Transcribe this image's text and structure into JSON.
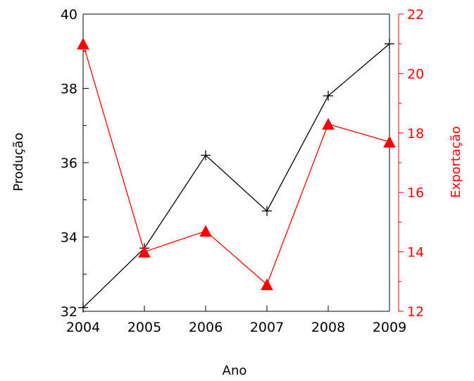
{
  "chart_data": {
    "type": "line",
    "title": "",
    "xlabel": "Ano",
    "ylabel_left": "Produção",
    "ylabel_right": "Exportação",
    "x": [
      2004,
      2005,
      2006,
      2007,
      2008,
      2009
    ],
    "xlim": [
      2004,
      2009
    ],
    "x_tick_labels": [
      "2004",
      "2005",
      "2006",
      "2007",
      "2008",
      "2009"
    ],
    "ylim_left": [
      32,
      40
    ],
    "y_left_tick_labels": [
      "32",
      "34",
      "36",
      "38",
      "40"
    ],
    "ylim_right": [
      12,
      22
    ],
    "y_right_tick_labels": [
      "12",
      "14",
      "16",
      "18",
      "20",
      "22"
    ],
    "grid": false,
    "series": [
      {
        "axis": "left",
        "color": "#000000",
        "marker": "plus",
        "values": [
          32.1,
          33.7,
          36.2,
          34.7,
          37.8,
          39.2
        ]
      },
      {
        "axis": "right",
        "color": "#ff0000",
        "marker": "triangle",
        "values": [
          21.0,
          14.0,
          14.7,
          12.9,
          18.3,
          17.7
        ]
      }
    ]
  }
}
